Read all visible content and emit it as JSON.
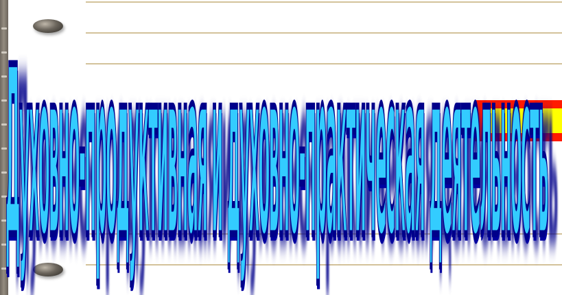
{
  "slide": {
    "wordart_text": "Духовно-продуктивная и духовно-практическая деятельность",
    "colors": {
      "text_fill": "#33ccff",
      "text_outline": "#00008a",
      "box_fill": "#ffff00",
      "box_border": "#ff1a00",
      "ruled_line": "#d3c29a",
      "binding": "#8b8378"
    }
  }
}
